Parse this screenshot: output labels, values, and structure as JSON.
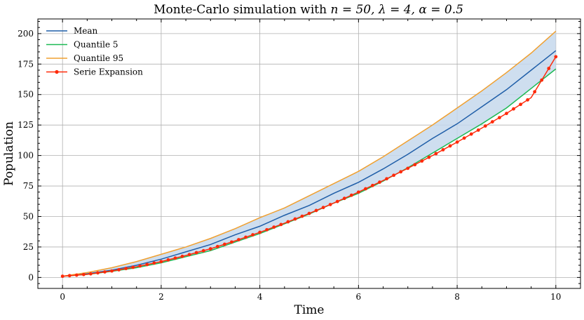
{
  "chart_data": {
    "type": "line",
    "title_prefix": "Monte-Carlo simulation with ",
    "title_math": "n = 50, λ = 4, α = 0.5",
    "xlabel": "Time",
    "ylabel": "Population",
    "xlim": [
      -0.5,
      10.5
    ],
    "ylim": [
      -9,
      212
    ],
    "xticks": [
      0,
      2,
      4,
      6,
      8,
      10
    ],
    "yticks": [
      0,
      25,
      50,
      75,
      100,
      125,
      150,
      175,
      200
    ],
    "grid": true,
    "legend_position": "top-left",
    "band": {
      "lower_series": "Quantile 5",
      "upper_series": "Quantile 95",
      "color": "#c6d8ec"
    },
    "series": [
      {
        "name": "Mean",
        "color": "#1f5ea8",
        "marker": false,
        "x": [
          0,
          0.5,
          1,
          1.5,
          2,
          2.5,
          3,
          3.5,
          4,
          4.5,
          5,
          5.5,
          6,
          6.5,
          7,
          7.5,
          8,
          8.5,
          9,
          9.5,
          10
        ],
        "y": [
          1,
          3,
          6,
          10,
          15,
          21,
          27,
          35,
          42,
          51,
          59,
          69,
          78,
          89,
          101,
          114,
          126,
          140,
          154,
          170,
          186
        ]
      },
      {
        "name": "Quantile 5",
        "color": "#1db954",
        "marker": false,
        "x": [
          0,
          0.5,
          1,
          1.5,
          2,
          2.5,
          3,
          3.5,
          4,
          4.5,
          5,
          5.5,
          6,
          6.5,
          7,
          7.5,
          8,
          8.5,
          9,
          9.5,
          10
        ],
        "y": [
          1,
          2.5,
          5,
          8,
          12,
          17,
          22,
          29,
          36,
          44,
          52,
          61,
          69,
          79,
          90,
          102,
          114,
          126,
          139,
          155,
          171
        ]
      },
      {
        "name": "Quantile 95",
        "color": "#f0a030",
        "marker": false,
        "x": [
          0,
          0.5,
          1,
          1.5,
          2,
          2.5,
          3,
          3.5,
          4,
          4.5,
          5,
          5.5,
          6,
          6.5,
          7,
          7.5,
          8,
          8.5,
          9,
          9.5,
          10
        ],
        "y": [
          1,
          4,
          8,
          13,
          19,
          25,
          32,
          40,
          49,
          57,
          67,
          77,
          87,
          99,
          112,
          125,
          139,
          153,
          168,
          184,
          202
        ]
      },
      {
        "name": "Serie Expansion",
        "color": "#ff2a0a",
        "marker": true,
        "x": [
          0,
          0.5,
          1,
          1.5,
          2,
          2.5,
          3,
          3.5,
          4,
          4.5,
          5,
          5.5,
          6,
          6.5,
          7,
          7.5,
          8,
          8.5,
          9,
          9.5,
          10
        ],
        "y": [
          1,
          2.6,
          5.3,
          8.8,
          13,
          18,
          23.5,
          30,
          37,
          44.5,
          52.5,
          61,
          70,
          79.5,
          89.5,
          100,
          111,
          122.5,
          134.5,
          147.5,
          181
        ]
      }
    ]
  }
}
